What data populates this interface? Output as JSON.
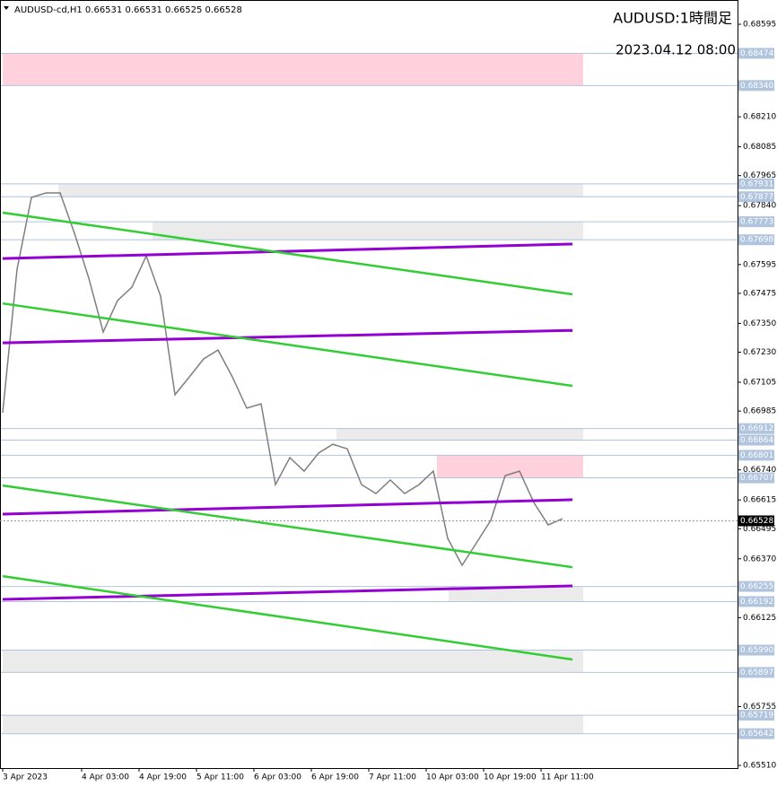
{
  "chart_data": {
    "type": "line",
    "header": "AUDUSD-cd,H1  0.66531 0.66531 0.66525 0.66528",
    "title": "AUDUSD:1時間足",
    "subtitle": "2023.04.12 08:00",
    "xlim": [
      0,
      205
    ],
    "ylim": [
      0.65499,
      0.68696
    ],
    "xticks": [
      {
        "value": 0,
        "label": "3 Apr 2023"
      },
      {
        "value": 22,
        "label": "4 Apr 03:00"
      },
      {
        "value": 38,
        "label": "4 Apr 19:00"
      },
      {
        "value": 54,
        "label": "5 Apr 11:00"
      },
      {
        "value": 70,
        "label": "6 Apr 03:00"
      },
      {
        "value": 86,
        "label": "6 Apr 19:00"
      },
      {
        "value": 102,
        "label": "7 Apr 11:00"
      },
      {
        "value": 118,
        "label": "10 Apr 03:00"
      },
      {
        "value": 134,
        "label": "10 Apr 19:00"
      },
      {
        "value": 150,
        "label": "11 Apr 11:00"
      }
    ],
    "yticks": [
      0.68595,
      {
        "value": 0.6821,
        "label": "0.68210"
      },
      0.68085,
      0.67965,
      {
        "value": 0.6784,
        "label": "0.67840"
      },
      0.67595,
      0.67475,
      {
        "value": 0.6735,
        "label": "0.67350"
      },
      {
        "value": 0.6723,
        "label": "0.67230"
      },
      0.67105,
      0.66985,
      {
        "value": 0.6674,
        "label": "0.66740"
      },
      0.66615,
      0.66495,
      {
        "value": 0.6637,
        "label": "0.66370"
      },
      0.66125,
      0.65755,
      {
        "value": 0.6551,
        "label": "0.65510"
      }
    ],
    "levels": [
      0.68474,
      {
        "value": 0.6834,
        "label": "0.68340"
      },
      0.67931,
      0.67877,
      0.67773,
      0.67698,
      0.66912,
      0.66864,
      0.66801,
      0.66707,
      0.66255,
      0.66192,
      {
        "value": 0.6599,
        "label": "0.65990"
      },
      0.65897,
      0.65719,
      0.65642
    ],
    "current": 0.66528,
    "zones": [
      {
        "top": 0.68474,
        "bottom": 0.6834,
        "start": 0,
        "end": 161.75,
        "color": "#ffd1dc"
      },
      {
        "top": 0.67931,
        "bottom": 0.67877,
        "start": 15.5,
        "end": 161.75,
        "color": "#ebebeb"
      },
      {
        "top": 0.67773,
        "bottom": 0.67698,
        "start": 41.75,
        "end": 161.75,
        "color": "#ebebeb"
      },
      {
        "top": 0.66912,
        "bottom": 0.66864,
        "start": 93,
        "end": 161.75,
        "color": "#ebebeb"
      },
      {
        "top": 0.66801,
        "bottom": 0.66707,
        "start": 121,
        "end": 161.75,
        "color": "#ffd1dc"
      },
      {
        "top": 0.66255,
        "bottom": 0.66192,
        "start": 124.25,
        "end": 161.75,
        "color": "#ebebeb"
      },
      {
        "top": 0.6599,
        "bottom": 0.65897,
        "start": 0,
        "end": 161.75,
        "color": "#ebebeb"
      },
      {
        "top": 0.65719,
        "bottom": 0.65642,
        "start": 0,
        "end": 161.75,
        "color": "#ebebeb"
      }
    ],
    "trendlines": [
      {
        "x": [
          0,
          158.75
        ],
        "values": [
          0.6762,
          0.6768
        ],
        "color": "#9400d3"
      },
      {
        "x": [
          0,
          158.75
        ],
        "values": [
          0.67811,
          0.67471
        ],
        "color": "#32cd32"
      },
      {
        "x": [
          0,
          158.75
        ],
        "values": [
          0.67269,
          0.67321
        ],
        "color": "#9400d3"
      },
      {
        "x": [
          0,
          158.75
        ],
        "values": [
          0.67433,
          0.6709
        ],
        "color": "#32cd32"
      },
      {
        "x": [
          0,
          158.75
        ],
        "values": [
          0.66556,
          0.66616
        ],
        "color": "#9400d3"
      },
      {
        "x": [
          0,
          158.75
        ],
        "values": [
          0.66675,
          0.66335
        ],
        "color": "#32cd32"
      },
      {
        "x": [
          0,
          158.75
        ],
        "values": [
          0.66201,
          0.66257
        ],
        "color": "#9400d3"
      },
      {
        "x": [
          0,
          158.75
        ],
        "values": [
          0.66298,
          0.65951
        ],
        "color": "#32cd32"
      }
    ],
    "close": {
      "color": "#7f7f7f",
      "x": [
        0,
        4,
        8,
        12,
        16,
        20,
        24,
        28,
        32,
        36,
        40,
        44,
        48,
        52,
        56,
        60,
        64,
        68,
        72,
        76,
        80,
        84,
        88,
        92,
        96,
        100,
        104,
        108,
        112,
        116,
        120,
        124,
        128,
        132,
        136,
        140,
        144,
        148,
        152,
        156
      ],
      "values": [
        0.66978,
        0.67575,
        0.67874,
        0.67893,
        0.67893,
        0.67725,
        0.67538,
        0.67314,
        0.67445,
        0.67501,
        0.67631,
        0.67463,
        0.67053,
        0.67127,
        0.67202,
        0.67239,
        0.67127,
        0.66997,
        0.67015,
        0.66679,
        0.66791,
        0.66735,
        0.6681,
        0.66847,
        0.66828,
        0.66679,
        0.66642,
        0.66698,
        0.66642,
        0.66679,
        0.66735,
        0.66455,
        0.66343,
        0.66436,
        0.6653,
        0.66716,
        0.66735,
        0.66604,
        0.66511,
        0.66537
      ]
    }
  }
}
